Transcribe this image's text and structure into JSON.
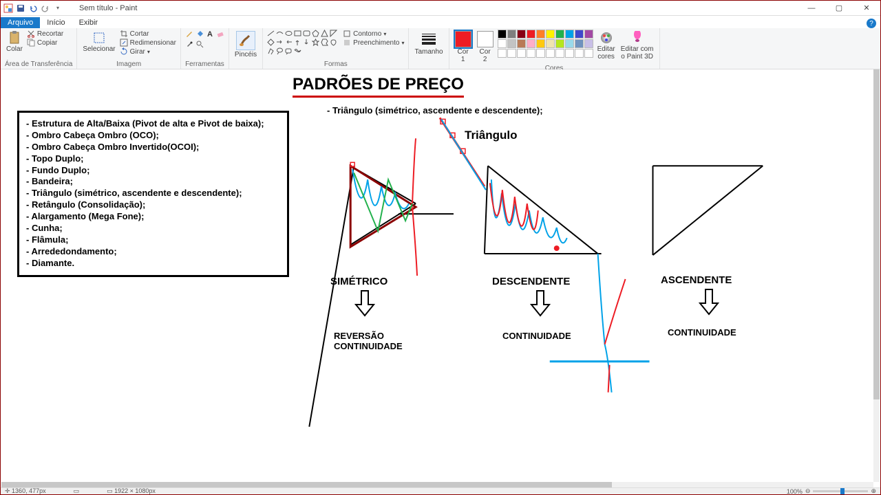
{
  "window": {
    "title": "Sem título - Paint",
    "qat": [
      "paint-icon",
      "save-icon",
      "undo-icon",
      "redo-icon",
      "dropdown-icon"
    ]
  },
  "tabs": {
    "file": "Arquivo",
    "home": "Início",
    "view": "Exibir"
  },
  "ribbon": {
    "clipboard": {
      "label": "Área de Transferência",
      "paste": "Colar",
      "cut": "Recortar",
      "copy": "Copiar"
    },
    "image": {
      "label": "Imagem",
      "select": "Selecionar",
      "crop": "Cortar",
      "resize": "Redimensionar",
      "rotate": "Girar"
    },
    "tools": {
      "label": "Ferramentas"
    },
    "brushes": {
      "label": "Pincéis"
    },
    "shapes": {
      "label": "Formas",
      "outline": "Contorno",
      "fill": "Preenchimento"
    },
    "size": {
      "label": "Tamanho"
    },
    "colors": {
      "label": "Cores",
      "color1": "Cor\n1",
      "color2": "Cor\n2",
      "color1_value": "#ed1c24",
      "color2_value": "#ffffff",
      "edit": "Editar\ncores",
      "paint3d": "Editar com\no Paint 3D",
      "palette_row1": [
        "#000000",
        "#7f7f7f",
        "#880015",
        "#ed1c24",
        "#ff7f27",
        "#fff200",
        "#22b14c",
        "#00a2e8",
        "#3f48cc",
        "#a349a4"
      ],
      "palette_row2": [
        "#ffffff",
        "#c3c3c3",
        "#b97a57",
        "#ffaec9",
        "#ffc90e",
        "#efe4b0",
        "#b5e61d",
        "#99d9ea",
        "#7092be",
        "#c8bfe7"
      ],
      "palette_row3": [
        "#ffffff",
        "#ffffff",
        "#ffffff",
        "#ffffff",
        "#ffffff",
        "#ffffff",
        "#ffffff",
        "#ffffff",
        "#ffffff",
        "#ffffff"
      ]
    }
  },
  "canvas": {
    "title": "PADRÕES DE PREÇO",
    "subtitle": "- Triângulo (simétrico, ascendente e descendente);",
    "triangle_label": "Triângulo",
    "info_items": [
      "- Estrutura de Alta/Baixa (Pivot de alta e Pivot de baixa);",
      "- Ombro Cabeça Ombro (OCO);",
      "- Ombro Cabeça Ombro Invertido(OCOI);",
      "- Topo Duplo;",
      "- Fundo Duplo;",
      "- Bandeira;",
      "- Triângulo (simétrico, ascendente e descendente);",
      "- Retângulo (Consolidação);",
      "- Alargamento (Mega Fone);",
      "- Cunha;",
      "- Flâmula;",
      "- Arrededondamento;",
      "- Diamante."
    ],
    "sections": {
      "sym": {
        "label": "SIMÉTRICO",
        "result": "REVERSÃO\nCONTINUIDADE"
      },
      "desc": {
        "label": "DESCENDENTE",
        "result": "CONTINUIDADE"
      },
      "asc": {
        "label": "ASCENDENTE",
        "result": "CONTINUIDADE"
      }
    },
    "colors": {
      "black": "#000000",
      "red": "#ed1c24",
      "darkred": "#8b0000",
      "blue": "#00a2e8",
      "green": "#22b14c"
    }
  },
  "statusbar": {
    "coords": "1360, 477px",
    "dims": "1922 × 1080px",
    "zoom": "100%"
  }
}
